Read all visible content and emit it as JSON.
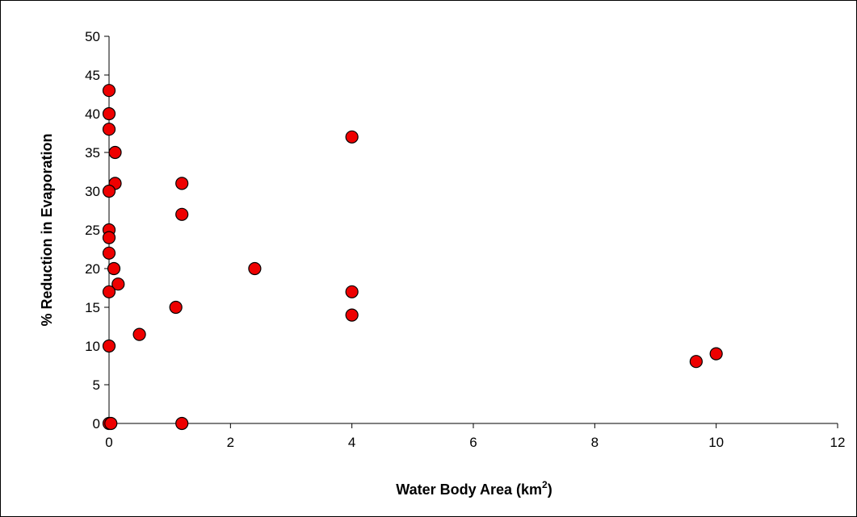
{
  "chart_data": {
    "type": "scatter",
    "title": "",
    "xlabel": "Water Body Area (km",
    "xlabel_sup": "2",
    "xlabel_close": ")",
    "ylabel": "% Reduction in Evaporation",
    "xlim": [
      0,
      12
    ],
    "ylim": [
      0,
      50
    ],
    "x_ticks": [
      0,
      2,
      4,
      6,
      8,
      10,
      12
    ],
    "y_ticks": [
      0,
      5,
      10,
      15,
      20,
      25,
      30,
      35,
      40,
      45,
      50
    ],
    "grid": false,
    "legend": "none",
    "marker_color": "#ee0000",
    "points": [
      {
        "x": 0.0,
        "y": 43
      },
      {
        "x": 0.0,
        "y": 40
      },
      {
        "x": 0.0,
        "y": 38
      },
      {
        "x": 0.1,
        "y": 35
      },
      {
        "x": 0.1,
        "y": 31
      },
      {
        "x": 0.0,
        "y": 30
      },
      {
        "x": 0.0,
        "y": 25
      },
      {
        "x": 0.0,
        "y": 24
      },
      {
        "x": 0.0,
        "y": 22
      },
      {
        "x": 0.08,
        "y": 20
      },
      {
        "x": 0.15,
        "y": 18
      },
      {
        "x": 0.0,
        "y": 17
      },
      {
        "x": 0.0,
        "y": 10
      },
      {
        "x": 0.0,
        "y": 0
      },
      {
        "x": 0.03,
        "y": 0
      },
      {
        "x": 0.5,
        "y": 11.5
      },
      {
        "x": 1.1,
        "y": 15
      },
      {
        "x": 1.2,
        "y": 31
      },
      {
        "x": 1.2,
        "y": 27
      },
      {
        "x": 1.2,
        "y": 0
      },
      {
        "x": 2.4,
        "y": 20
      },
      {
        "x": 4.0,
        "y": 37
      },
      {
        "x": 4.0,
        "y": 17
      },
      {
        "x": 4.0,
        "y": 14
      },
      {
        "x": 9.67,
        "y": 8
      },
      {
        "x": 10.0,
        "y": 9
      }
    ]
  }
}
